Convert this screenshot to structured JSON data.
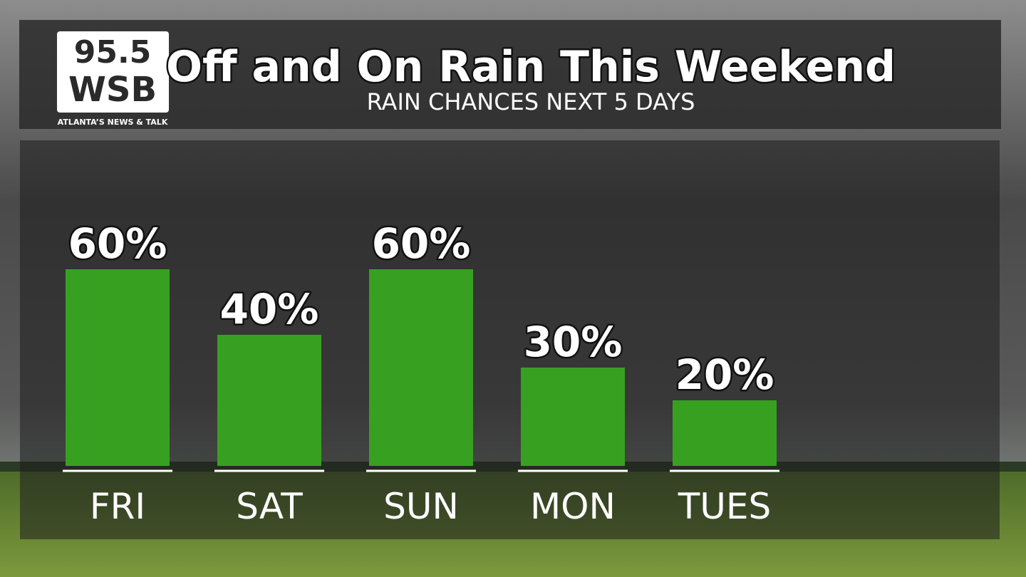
{
  "chart_data": {
    "type": "bar",
    "title": "Off and On Rain This Weekend",
    "subtitle": "RAIN CHANCES NEXT 5 DAYS",
    "categories": [
      "FRI",
      "SAT",
      "SUN",
      "MON",
      "TUES"
    ],
    "values": [
      60,
      40,
      60,
      30,
      20
    ],
    "value_labels": [
      "60%",
      "40%",
      "60%",
      "30%",
      "20%"
    ],
    "color": "#38a021"
  },
  "logo": {
    "frequency": "95.5",
    "call_sign": "WSB",
    "tagline": "ATLANTA’S NEWS & TALK"
  }
}
